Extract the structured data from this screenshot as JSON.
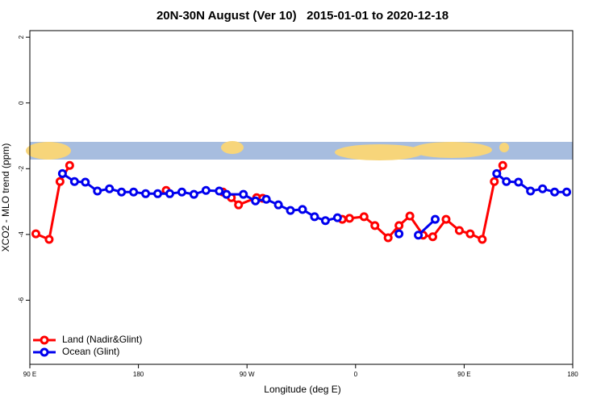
{
  "chart_data": {
    "type": "line",
    "title": "20N-30N August (Ver 10)   2015-01-01 to 2020-12-18",
    "x_label": "Longitude (deg E)",
    "y_label": "XCO2 - MLO trend (ppm)",
    "xlim": [
      90,
      540
    ],
    "xticks": [
      {
        "value": 90,
        "label": "90 E"
      },
      {
        "value": 180,
        "label": "180"
      },
      {
        "value": 270,
        "label": "90 W"
      },
      {
        "value": 360,
        "label": "0"
      },
      {
        "value": 450,
        "label": "90 E"
      },
      {
        "value": 540,
        "label": "180"
      }
    ],
    "ylim": [
      -7.95,
      2.2
    ],
    "yticks": [
      2,
      0,
      -2,
      -4,
      -6
    ],
    "legend": "bottom-left",
    "series": [
      {
        "name": "Land (Nadir&Glint)",
        "color": "#ff0000",
        "x": [
          95,
          106,
          115,
          123,
          null,
          203,
          null,
          250,
          257,
          263,
          278,
          283,
          null,
          349,
          355,
          367,
          376,
          387,
          396,
          405,
          416,
          424,
          435,
          446,
          455,
          465,
          475,
          482
        ],
        "values": [
          -3.98,
          -4.15,
          -2.39,
          -1.9,
          null,
          -2.66,
          null,
          -2.71,
          -2.88,
          -3.1,
          -2.88,
          -2.9,
          null,
          -3.54,
          -3.51,
          -3.46,
          -3.73,
          -4.1,
          -3.73,
          -3.44,
          -4.02,
          -4.07,
          -3.54,
          -3.88,
          -3.98,
          -4.15,
          -2.39,
          -1.9
        ]
      },
      {
        "name": "Ocean (Glint)",
        "color": "#0000ee",
        "x": [
          117,
          127,
          136,
          146,
          156,
          166,
          176,
          186,
          196,
          206,
          216,
          226,
          236,
          247,
          253,
          267,
          277,
          286,
          296,
          306,
          316,
          326,
          335,
          345,
          null,
          396,
          null,
          412,
          426,
          null,
          477,
          485,
          495,
          505,
          515,
          525,
          535
        ],
        "values": [
          -2.15,
          -2.39,
          -2.41,
          -2.68,
          -2.61,
          -2.71,
          -2.71,
          -2.76,
          -2.76,
          -2.76,
          -2.71,
          -2.78,
          -2.66,
          -2.68,
          -2.78,
          -2.78,
          -2.98,
          -2.93,
          -3.1,
          -3.27,
          -3.24,
          -3.46,
          -3.58,
          -3.49,
          null,
          -3.98,
          null,
          -4.02,
          -3.54,
          null,
          -2.15,
          -2.39,
          -2.41,
          -2.68,
          -2.61,
          -2.71,
          -2.71
        ]
      }
    ]
  }
}
